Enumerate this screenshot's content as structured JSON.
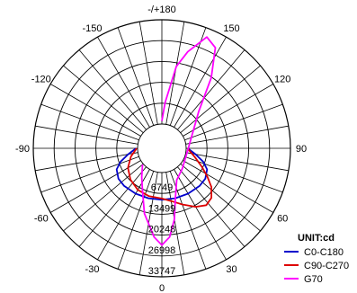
{
  "chart_data": {
    "type": "polar",
    "title": "",
    "unit_label": "UNIT:cd",
    "radial_max": 33747,
    "radial_ticks": [
      6749,
      13499,
      20248,
      26998,
      33747
    ],
    "radial_tick_labels": [
      "6749",
      "13499",
      "20248",
      "26998",
      "33747"
    ],
    "angle_tick_labels": [
      "-/+180",
      "150",
      "120",
      "90",
      "60",
      "30",
      "0",
      "-30",
      "-60",
      "-90",
      "-120",
      "-150"
    ],
    "angle_tick_values": [
      180,
      150,
      120,
      90,
      60,
      30,
      0,
      -30,
      -60,
      -90,
      -120,
      -150
    ],
    "grid": true,
    "legend_position": "bottom-right",
    "series": [
      {
        "name": "C0-C180",
        "color": "#0000cc",
        "points": [
          [
            -90,
            500
          ],
          [
            -80,
            3200
          ],
          [
            -72,
            6200
          ],
          [
            -65,
            8300
          ],
          [
            -55,
            9300
          ],
          [
            -45,
            9400
          ],
          [
            -30,
            9100
          ],
          [
            -15,
            8900
          ],
          [
            0,
            8800
          ],
          [
            15,
            8900
          ],
          [
            30,
            9100
          ],
          [
            45,
            9400
          ],
          [
            55,
            9300
          ],
          [
            65,
            8300
          ],
          [
            72,
            6200
          ],
          [
            80,
            3200
          ],
          [
            90,
            500
          ]
        ]
      },
      {
        "name": "C90-C270",
        "color": "#dd0000",
        "points": [
          [
            -90,
            300
          ],
          [
            -75,
            2500
          ],
          [
            -60,
            4800
          ],
          [
            -45,
            6500
          ],
          [
            -30,
            7700
          ],
          [
            -15,
            8200
          ],
          [
            0,
            8400
          ],
          [
            10,
            9500
          ],
          [
            20,
            11500
          ],
          [
            30,
            14000
          ],
          [
            38,
            15500
          ],
          [
            45,
            14800
          ],
          [
            52,
            12500
          ],
          [
            58,
            9500
          ],
          [
            65,
            6500
          ],
          [
            75,
            3200
          ],
          [
            90,
            400
          ]
        ]
      },
      {
        "name": "G70",
        "color": "#ff00ff",
        "points": [
          [
            -50,
            300
          ],
          [
            -35,
            3500
          ],
          [
            -25,
            7000
          ],
          [
            -15,
            14000
          ],
          [
            -5,
            21000
          ],
          [
            0,
            23500
          ],
          [
            5,
            21000
          ],
          [
            10,
            15500
          ],
          [
            15,
            9000
          ],
          [
            25,
            3500
          ],
          [
            45,
            1500
          ],
          [
            90,
            700
          ],
          [
            135,
            9000
          ],
          [
            145,
            20000
          ],
          [
            152,
            29000
          ],
          [
            158,
            31000
          ],
          [
            165,
            24500
          ],
          [
            170,
            19000
          ],
          [
            176,
            7000
          ],
          [
            180,
            1000
          ]
        ]
      }
    ]
  }
}
